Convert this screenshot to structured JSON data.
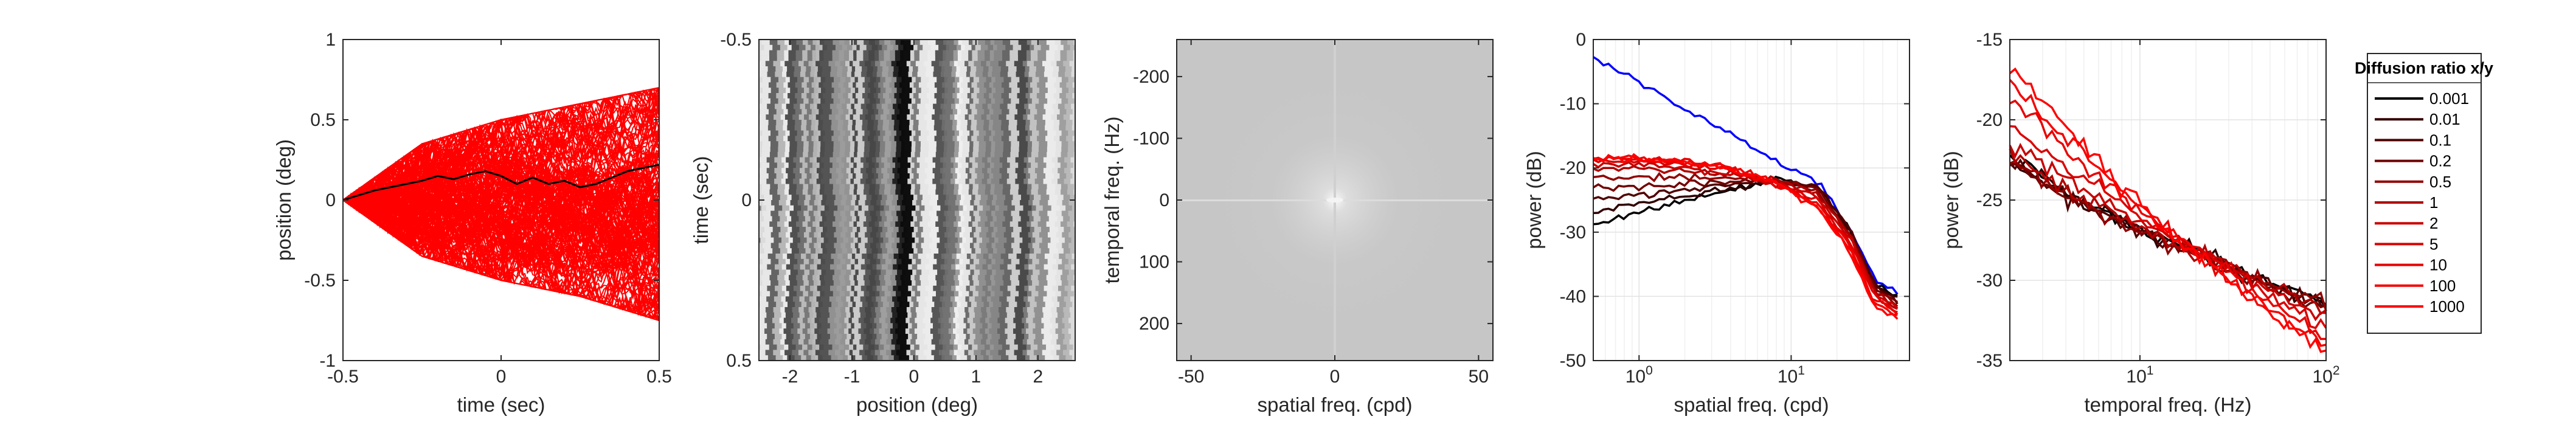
{
  "chart_data": [
    {
      "type": "line",
      "panel": "trajectories",
      "xlabel": "time (sec)",
      "ylabel": "position (deg)",
      "xlim": [
        -0.5,
        0.5
      ],
      "ylim": [
        -1,
        1
      ],
      "xticks": [
        "-0.5",
        "0",
        "0.5"
      ],
      "yticks": [
        "-1",
        "-0.5",
        "0",
        "0.5",
        "1"
      ],
      "series": [
        {
          "color": "#ff0000",
          "count": 200,
          "envelope": {
            "x": [
              -0.5,
              -0.25,
              0,
              0.25,
              0.5
            ],
            "upper": [
              0.0,
              0.35,
              0.5,
              0.6,
              0.7
            ],
            "lower": [
              0.0,
              -0.35,
              -0.5,
              -0.6,
              -0.75
            ]
          }
        },
        {
          "color": "#000000",
          "x": [
            -0.5,
            -0.45,
            -0.4,
            -0.35,
            -0.3,
            -0.25,
            -0.2,
            -0.15,
            -0.1,
            -0.05,
            0,
            0.05,
            0.1,
            0.15,
            0.2,
            0.25,
            0.3,
            0.35,
            0.4,
            0.45,
            0.5
          ],
          "y": [
            0.0,
            0.03,
            0.06,
            0.08,
            0.1,
            0.12,
            0.15,
            0.13,
            0.16,
            0.18,
            0.15,
            0.1,
            0.14,
            0.1,
            0.12,
            0.08,
            0.1,
            0.14,
            0.18,
            0.2,
            0.22
          ]
        }
      ]
    },
    {
      "type": "heatmap",
      "panel": "space-time movie",
      "colormap": "gray",
      "xlabel": "position (deg)",
      "ylabel": "time (sec)",
      "xlim": [
        -2.5,
        2.6
      ],
      "ylim": [
        -0.5,
        0.5
      ],
      "xticks": [
        "-2",
        "-1",
        "0",
        "1",
        "2"
      ],
      "yticks": [
        "-0.5",
        "0",
        "0.5"
      ]
    },
    {
      "type": "heatmap",
      "panel": "2D power spectrum",
      "colormap": "gray",
      "xlabel": "spatial freq. (cpd)",
      "ylabel": "temporal freq. (Hz)",
      "xlim": [
        -55,
        55
      ],
      "ylim": [
        -260,
        260
      ],
      "xticks": [
        "-50",
        "0",
        "50"
      ],
      "yticks": [
        "-200",
        "-100",
        "0",
        "100",
        "200"
      ]
    },
    {
      "type": "line",
      "panel": "spatial spectrum",
      "xscale": "log",
      "xlabel": "spatial freq. (cpd)",
      "ylabel": "power (dB)",
      "xlim": [
        0.5,
        60
      ],
      "ylim": [
        -50,
        0
      ],
      "xticks": [
        "10^0",
        "10^1"
      ],
      "yticks": [
        "0",
        "-10",
        "-20",
        "-30",
        "-40",
        "-50"
      ],
      "x": [
        0.5,
        1,
        2,
        4,
        8,
        15,
        25,
        35,
        50
      ],
      "series": [
        {
          "color": "#0000ff",
          "values": [
            -3,
            -6.5,
            -11,
            -14.5,
            -19,
            -22,
            -30,
            -37,
            -39.5
          ]
        },
        {
          "color": "#000000",
          "values": [
            -29,
            -27,
            -25,
            -23.5,
            -21.5,
            -23,
            -30,
            -38,
            -40
          ]
        },
        {
          "color": "#300000",
          "values": [
            -27,
            -25.5,
            -24.5,
            -23,
            -22,
            -23,
            -30,
            -38,
            -40.5
          ]
        },
        {
          "color": "#500000",
          "values": [
            -25,
            -24,
            -23.5,
            -22.5,
            -22,
            -23,
            -30,
            -38,
            -41
          ]
        },
        {
          "color": "#700000",
          "values": [
            -23,
            -23,
            -22.5,
            -22,
            -22,
            -23,
            -30.5,
            -38.5,
            -41
          ]
        },
        {
          "color": "#900000",
          "values": [
            -21.5,
            -21.5,
            -21.5,
            -21.5,
            -22,
            -23.5,
            -31,
            -39,
            -41.5
          ]
        },
        {
          "color": "#b00000",
          "values": [
            -20,
            -20,
            -20.5,
            -21,
            -22,
            -24,
            -31,
            -39,
            -42
          ]
        },
        {
          "color": "#c80000",
          "values": [
            -19.5,
            -19.5,
            -20,
            -21,
            -22.5,
            -24.5,
            -31.5,
            -39.5,
            -42
          ]
        },
        {
          "color": "#da0000",
          "values": [
            -19,
            -19,
            -19.5,
            -20.5,
            -22.5,
            -25,
            -32,
            -40,
            -42.5
          ]
        },
        {
          "color": "#e80000",
          "values": [
            -18.5,
            -18.5,
            -19,
            -20,
            -22.5,
            -25.5,
            -32.5,
            -40.5,
            -42.5
          ]
        },
        {
          "color": "#f40000",
          "values": [
            -18.5,
            -18.5,
            -19,
            -20,
            -22.5,
            -26,
            -33,
            -41,
            -43
          ]
        },
        {
          "color": "#ff0000",
          "values": [
            -18.5,
            -18.5,
            -19,
            -20,
            -22.5,
            -26,
            -33.5,
            -41.5,
            -43
          ]
        }
      ]
    },
    {
      "type": "line",
      "panel": "temporal spectrum",
      "xscale": "log",
      "xlabel": "temporal freq. (Hz)",
      "ylabel": "power (dB)",
      "xlim": [
        2,
        100
      ],
      "ylim": [
        -35,
        -15
      ],
      "xticks": [
        "10^1",
        "10^2"
      ],
      "yticks": [
        "-15",
        "-20",
        "-25",
        "-30",
        "-35"
      ],
      "x": [
        2,
        3,
        5,
        10,
        20,
        50,
        100
      ],
      "series": [
        {
          "color": "#000000",
          "values": [
            -22.5,
            -23.7,
            -25.2,
            -26.8,
            -28.2,
            -30.2,
            -31.4
          ]
        },
        {
          "color": "#300000",
          "values": [
            -22.6,
            -23.8,
            -25.2,
            -26.9,
            -28.3,
            -30.3,
            -31.5
          ]
        },
        {
          "color": "#500000",
          "values": [
            -22.7,
            -23.9,
            -25.3,
            -27,
            -28.3,
            -30.3,
            -31.6
          ]
        },
        {
          "color": "#700000",
          "values": [
            -22.8,
            -24,
            -25.4,
            -27,
            -28.4,
            -30.4,
            -31.7
          ]
        },
        {
          "color": "#900000",
          "values": [
            -22.6,
            -23.8,
            -25.2,
            -26.9,
            -28.3,
            -30.3,
            -31.5
          ]
        },
        {
          "color": "#b00000",
          "values": [
            -22.3,
            -23.4,
            -24.9,
            -26.6,
            -28.2,
            -30.4,
            -31.8
          ]
        },
        {
          "color": "#c80000",
          "values": [
            -21.5,
            -22.8,
            -24.4,
            -26.3,
            -28.1,
            -30.6,
            -32.2
          ]
        },
        {
          "color": "#da0000",
          "values": [
            -20.3,
            -21.8,
            -23.7,
            -26,
            -28.1,
            -30.9,
            -32.8
          ]
        },
        {
          "color": "#e80000",
          "values": [
            -18.8,
            -20.6,
            -22.8,
            -25.6,
            -28.2,
            -31.4,
            -33.4
          ]
        },
        {
          "color": "#f40000",
          "values": [
            -17.5,
            -19.6,
            -22.2,
            -25.4,
            -28.3,
            -31.9,
            -34
          ]
        },
        {
          "color": "#ff0000",
          "values": [
            -16.6,
            -18.9,
            -21.7,
            -25.2,
            -28.4,
            -32.2,
            -34.4
          ]
        }
      ]
    }
  ],
  "legend": {
    "title": "Diffusion ratio x/y",
    "placement": "right",
    "entries": [
      {
        "label": "0.001",
        "color": "#000000"
      },
      {
        "label": "0.01",
        "color": "#300000"
      },
      {
        "label": "0.1",
        "color": "#500000"
      },
      {
        "label": "0.2",
        "color": "#700000"
      },
      {
        "label": "0.5",
        "color": "#900000"
      },
      {
        "label": "1",
        "color": "#b00000"
      },
      {
        "label": "2",
        "color": "#c80000"
      },
      {
        "label": "5",
        "color": "#da0000"
      },
      {
        "label": "10",
        "color": "#e80000"
      },
      {
        "label": "100",
        "color": "#f40000"
      },
      {
        "label": "1000",
        "color": "#ff0000"
      }
    ]
  }
}
